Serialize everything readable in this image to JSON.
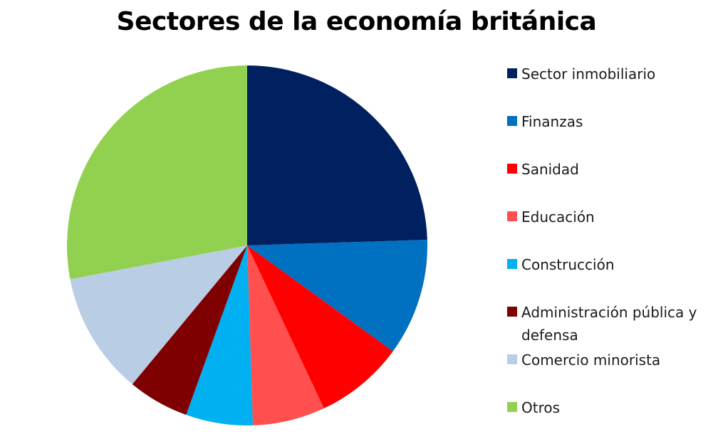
{
  "chart_data": {
    "type": "pie",
    "title": "Sectores de la economía británica",
    "legend_position": "right",
    "start_angle": "12 o'clock, clockwise",
    "slices": [
      {
        "label": "Sector inmobiliario",
        "value": 24.5,
        "color": "#002060"
      },
      {
        "label": "Finanzas",
        "value": 10.5,
        "color": "#0070C0"
      },
      {
        "label": "Sanidad",
        "value": 8.0,
        "color": "#FF0000"
      },
      {
        "label": "Educación",
        "value": 6.5,
        "color": "#FF4F4F"
      },
      {
        "label": "Construcción",
        "value": 6.0,
        "color": "#00B0F0"
      },
      {
        "label": "Administración pública y defensa",
        "value": 5.5,
        "color": "#7F0000"
      },
      {
        "label": "Comercio minorista",
        "value": 11.0,
        "color": "#B9CDE5"
      },
      {
        "label": "Otros",
        "value": 28.0,
        "color": "#92D050"
      }
    ]
  }
}
